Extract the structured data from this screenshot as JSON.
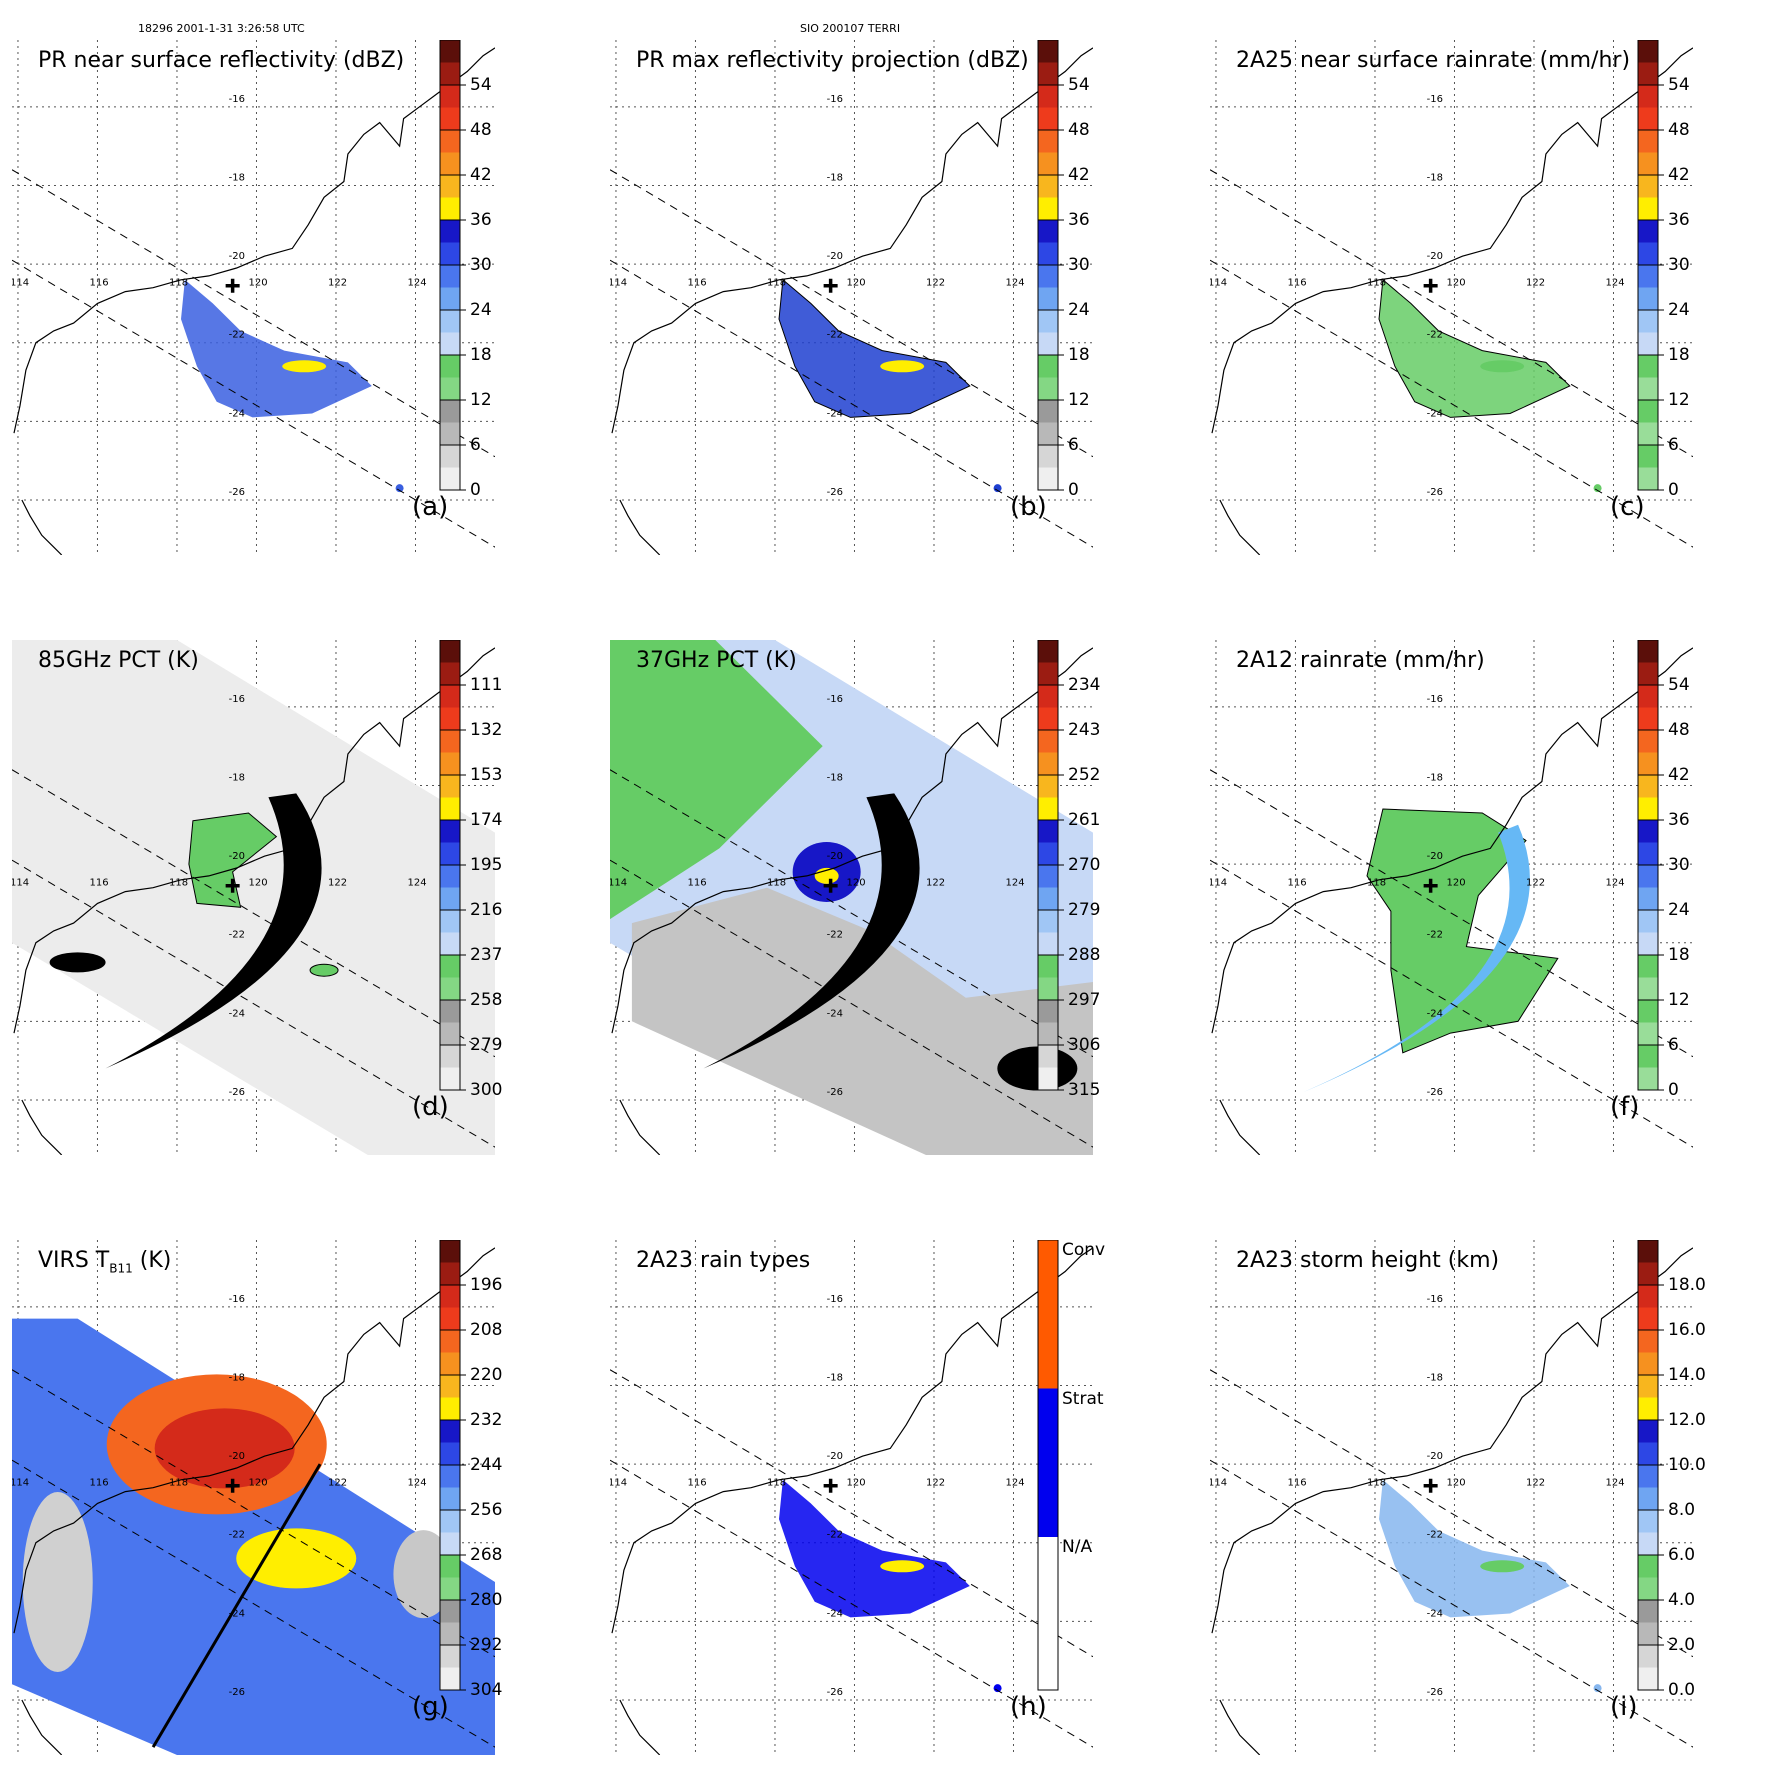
{
  "header": {
    "left": "18296 2001-1-31 3:26:58 UTC",
    "center": "SIO 200107 TERRI"
  },
  "map_labels": {
    "lon": [
      "114",
      "116",
      "118",
      "120",
      "122",
      "124"
    ],
    "lat": [
      "-16",
      "-18",
      "-20",
      "-22",
      "-24",
      "-26"
    ]
  },
  "panels": [
    {
      "id": "a",
      "title": "PR near surface reflectivity (dBZ)",
      "letter": "(a)",
      "colorbar": [
        "54",
        "48",
        "42",
        "36",
        "30",
        "24",
        "18",
        "12",
        "6",
        "0"
      ],
      "bands": [
        "#5b0f0a",
        "#9b1c12",
        "#d42a1a",
        "#ee3b1c",
        "#f4661f",
        "#f6911f",
        "#f8b61e",
        "#ffee00",
        "#1717c7",
        "#2d47e5",
        "#4a76ee",
        "#6fa5f2",
        "#a0c6f5",
        "#c7d9f6",
        "#66cc66",
        "#84d784",
        "#9a9a9a",
        "#b8b8b8",
        "#d6d6d6",
        "#efefef"
      ]
    },
    {
      "id": "b",
      "title": "PR max reflectivity projection (dBZ)",
      "letter": "(b)",
      "colorbar": [
        "54",
        "48",
        "42",
        "36",
        "30",
        "24",
        "18",
        "12",
        "6",
        "0"
      ],
      "bands": [
        "#5b0f0a",
        "#9b1c12",
        "#d42a1a",
        "#ee3b1c",
        "#f4661f",
        "#f6911f",
        "#f8b61e",
        "#ffee00",
        "#1717c7",
        "#2d47e5",
        "#4a76ee",
        "#6fa5f2",
        "#a0c6f5",
        "#c7d9f6",
        "#66cc66",
        "#84d784",
        "#9a9a9a",
        "#b8b8b8",
        "#d6d6d6",
        "#efefef"
      ]
    },
    {
      "id": "c",
      "title": "2A25 near surface rainrate (mm/hr)",
      "letter": "(c)",
      "colorbar": [
        "54",
        "48",
        "42",
        "36",
        "30",
        "24",
        "18",
        "12",
        "6",
        "0"
      ],
      "bands": [
        "#5b0f0a",
        "#9b1c12",
        "#d42a1a",
        "#ee3b1c",
        "#f4661f",
        "#f6911f",
        "#f8b61e",
        "#ffee00",
        "#1717c7",
        "#2d47e5",
        "#4a76ee",
        "#6fa5f2",
        "#a0c6f5",
        "#c7d9f6",
        "#66cc66",
        "#99dd99",
        "#66cc66",
        "#99dd99",
        "#66cc66",
        "#99dd99"
      ]
    },
    {
      "id": "d",
      "title": "85GHz PCT (K)",
      "letter": "(d)",
      "colorbar": [
        "111",
        "132",
        "153",
        "174",
        "195",
        "216",
        "237",
        "258",
        "279",
        "300"
      ],
      "bands": [
        "#5b0f0a",
        "#9b1c12",
        "#d42a1a",
        "#ee3b1c",
        "#f4661f",
        "#f6911f",
        "#f8b61e",
        "#ffee00",
        "#1717c7",
        "#2d47e5",
        "#4a76ee",
        "#6fa5f2",
        "#a0c6f5",
        "#c7d9f6",
        "#66cc66",
        "#84d784",
        "#9a9a9a",
        "#b8b8b8",
        "#d6d6d6",
        "#efefef"
      ]
    },
    {
      "id": "e",
      "title": "37GHz PCT (K)",
      "letter": "",
      "colorbar": [
        "234",
        "243",
        "252",
        "261",
        "270",
        "279",
        "288",
        "297",
        "306",
        "315"
      ],
      "bands": [
        "#5b0f0a",
        "#9b1c12",
        "#d42a1a",
        "#ee3b1c",
        "#f4661f",
        "#f6911f",
        "#f8b61e",
        "#ffee00",
        "#1717c7",
        "#2d47e5",
        "#4a76ee",
        "#6fa5f2",
        "#a0c6f5",
        "#c7d9f6",
        "#66cc66",
        "#84d784",
        "#9a9a9a",
        "#b8b8b8",
        "#d6d6d6",
        "#efefef"
      ]
    },
    {
      "id": "f",
      "title": "2A12 rainrate (mm/hr)",
      "letter": "(f)",
      "colorbar": [
        "54",
        "48",
        "42",
        "36",
        "30",
        "24",
        "18",
        "12",
        "6",
        "0"
      ],
      "bands": [
        "#5b0f0a",
        "#9b1c12",
        "#d42a1a",
        "#ee3b1c",
        "#f4661f",
        "#f6911f",
        "#f8b61e",
        "#ffee00",
        "#1717c7",
        "#2d47e5",
        "#4a76ee",
        "#6fa5f2",
        "#a0c6f5",
        "#c7d9f6",
        "#66cc66",
        "#99dd99",
        "#66cc66",
        "#99dd99",
        "#66cc66",
        "#99dd99"
      ]
    },
    {
      "id": "g",
      "title": "VIRS T",
      "title_sub": "B11",
      "title_unit": " (K)",
      "letter": "(g)",
      "colorbar": [
        "196",
        "208",
        "220",
        "232",
        "244",
        "256",
        "268",
        "280",
        "292",
        "304"
      ],
      "bands": [
        "#5b0f0a",
        "#9b1c12",
        "#d42a1a",
        "#ee3b1c",
        "#f4661f",
        "#f6911f",
        "#f8b61e",
        "#ffee00",
        "#1717c7",
        "#2d47e5",
        "#4a76ee",
        "#6fa5f2",
        "#a0c6f5",
        "#c7d9f6",
        "#66cc66",
        "#84d784",
        "#9a9a9a",
        "#b8b8b8",
        "#d6d6d6",
        "#efefef"
      ]
    },
    {
      "id": "h",
      "title": "2A23 rain types",
      "letter": "(h)",
      "colorbar_labels": [
        "Conv",
        "Strat",
        "N/A"
      ],
      "bands": [
        "#ff5a00",
        "#0000ee",
        "#ffffff"
      ]
    },
    {
      "id": "i",
      "title": "2A23 storm height (km)",
      "letter": "(i)",
      "colorbar": [
        "18.0",
        "16.0",
        "14.0",
        "12.0",
        "10.0",
        "8.0",
        "6.0",
        "4.0",
        "2.0",
        "0.0"
      ],
      "bands": [
        "#5b0f0a",
        "#9b1c12",
        "#d42a1a",
        "#ee3b1c",
        "#f4661f",
        "#f6911f",
        "#f8b61e",
        "#ffee00",
        "#1717c7",
        "#2d47e5",
        "#4a76ee",
        "#6fa5f2",
        "#a0c6f5",
        "#c7d9f6",
        "#66cc66",
        "#84d784",
        "#9a9a9a",
        "#b8b8b8",
        "#d6d6d6",
        "#efefef"
      ]
    }
  ]
}
